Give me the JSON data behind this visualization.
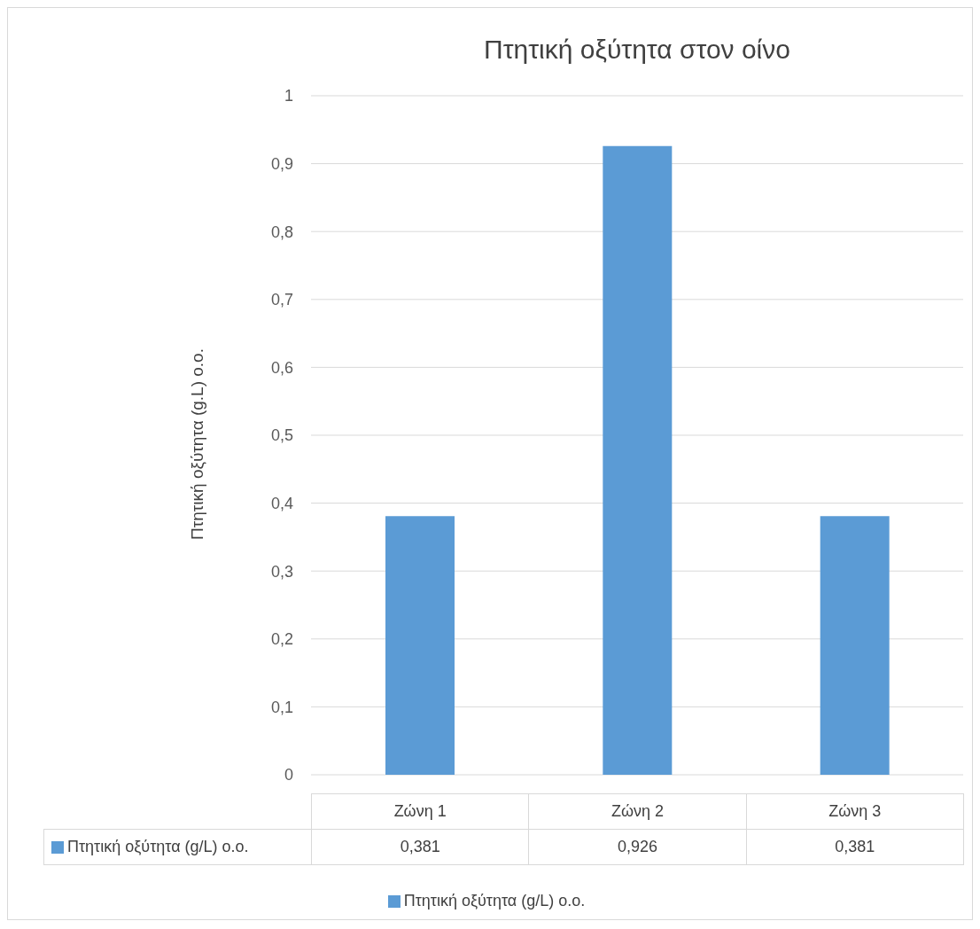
{
  "chart_data": {
    "type": "bar",
    "title": "Πτητική οξύτητα στον οίνο",
    "ylabel": "Πτητική οξύτητα (g.L) ο.ο.",
    "categories": [
      "Ζώνη 1",
      "Ζώνη 2",
      "Ζώνη 3"
    ],
    "series": [
      {
        "name": "Πτητική οξύτητα (g/L)  ο.ο.",
        "color": "#5b9bd5",
        "values": [
          0.381,
          0.926,
          0.381
        ],
        "value_labels": [
          "0,381",
          "0,926",
          "0,381"
        ]
      }
    ],
    "ylim": [
      0,
      1
    ],
    "yticks": [
      {
        "value": 0,
        "label": "0"
      },
      {
        "value": 0.1,
        "label": "0,1"
      },
      {
        "value": 0.2,
        "label": "0,2"
      },
      {
        "value": 0.3,
        "label": "0,3"
      },
      {
        "value": 0.4,
        "label": "0,4"
      },
      {
        "value": 0.5,
        "label": "0,5"
      },
      {
        "value": 0.6,
        "label": "0,6"
      },
      {
        "value": 0.7,
        "label": "0,7"
      },
      {
        "value": 0.8,
        "label": "0,8"
      },
      {
        "value": 0.9,
        "label": "0,9"
      },
      {
        "value": 1,
        "label": "1"
      }
    ],
    "grid": "y",
    "legend": "bottom"
  }
}
